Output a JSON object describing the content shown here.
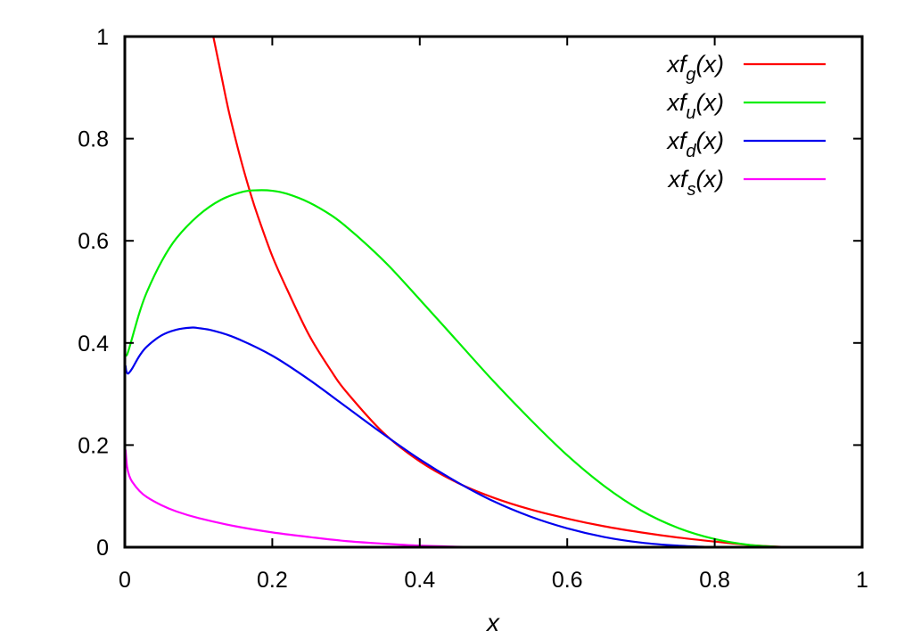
{
  "chart_data": {
    "type": "line",
    "title": "",
    "xlabel": "x",
    "ylabel": "",
    "xlim": [
      0,
      1
    ],
    "ylim": [
      0,
      1
    ],
    "x_ticks": [
      "0",
      "0.2",
      "0.4",
      "0.6",
      "0.8",
      "1"
    ],
    "y_ticks": [
      "0",
      "0.2",
      "0.4",
      "0.6",
      "0.8",
      "1"
    ],
    "grid": false,
    "legend_position": "top-right",
    "series": [
      {
        "name": "xf_g(x)",
        "legend": {
          "prefix": "xf",
          "sub": "g",
          "suffix": "(x)"
        },
        "color": "#ff0000",
        "x": [
          0.12,
          0.13,
          0.14,
          0.15,
          0.16,
          0.17,
          0.18,
          0.2,
          0.22,
          0.25,
          0.28,
          0.3,
          0.35,
          0.4,
          0.45,
          0.5,
          0.55,
          0.6,
          0.65,
          0.7,
          0.75,
          0.8,
          0.85,
          0.9
        ],
        "y": [
          1.0,
          0.93,
          0.86,
          0.8,
          0.745,
          0.695,
          0.65,
          0.57,
          0.505,
          0.415,
          0.345,
          0.305,
          0.225,
          0.168,
          0.127,
          0.097,
          0.074,
          0.056,
          0.041,
          0.029,
          0.019,
          0.011,
          0.004,
          0.0
        ]
      },
      {
        "name": "xf_u(x)",
        "legend": {
          "prefix": "xf",
          "sub": "u",
          "suffix": "(x)"
        },
        "color": "#00ee00",
        "x": [
          0.001,
          0.003,
          0.006,
          0.01,
          0.02,
          0.03,
          0.05,
          0.07,
          0.1,
          0.13,
          0.16,
          0.18,
          0.2,
          0.22,
          0.25,
          0.28,
          0.3,
          0.33,
          0.36,
          0.4,
          0.45,
          0.5,
          0.55,
          0.6,
          0.65,
          0.7,
          0.75,
          0.8,
          0.85,
          0.9
        ],
        "y": [
          0.375,
          0.377,
          0.39,
          0.41,
          0.46,
          0.5,
          0.56,
          0.605,
          0.65,
          0.68,
          0.696,
          0.699,
          0.698,
          0.692,
          0.675,
          0.65,
          0.628,
          0.59,
          0.548,
          0.485,
          0.405,
          0.325,
          0.25,
          0.18,
          0.12,
          0.072,
          0.038,
          0.016,
          0.004,
          0.0
        ]
      },
      {
        "name": "xf_d(x)",
        "legend": {
          "prefix": "xf",
          "sub": "d",
          "suffix": "(x)"
        },
        "color": "#0000ee",
        "x": [
          0.001,
          0.002,
          0.004,
          0.006,
          0.01,
          0.02,
          0.03,
          0.05,
          0.07,
          0.09,
          0.1,
          0.12,
          0.15,
          0.2,
          0.25,
          0.3,
          0.35,
          0.4,
          0.45,
          0.5,
          0.55,
          0.6,
          0.65,
          0.7,
          0.75,
          0.8
        ],
        "y": [
          0.355,
          0.345,
          0.34,
          0.342,
          0.35,
          0.375,
          0.393,
          0.415,
          0.426,
          0.43,
          0.429,
          0.424,
          0.41,
          0.375,
          0.328,
          0.275,
          0.222,
          0.172,
          0.128,
          0.09,
          0.06,
          0.037,
          0.02,
          0.009,
          0.003,
          0.0
        ]
      },
      {
        "name": "xf_s(x)",
        "legend": {
          "prefix": "xf",
          "sub": "s",
          "suffix": "(x)"
        },
        "color": "#ff00ff",
        "x": [
          0.001,
          0.003,
          0.006,
          0.01,
          0.02,
          0.03,
          0.05,
          0.07,
          0.1,
          0.15,
          0.2,
          0.25,
          0.3,
          0.35,
          0.4,
          0.45,
          0.5
        ],
        "y": [
          0.19,
          0.158,
          0.14,
          0.128,
          0.11,
          0.098,
          0.082,
          0.07,
          0.057,
          0.041,
          0.029,
          0.02,
          0.012,
          0.007,
          0.003,
          0.001,
          0.0
        ]
      }
    ]
  }
}
